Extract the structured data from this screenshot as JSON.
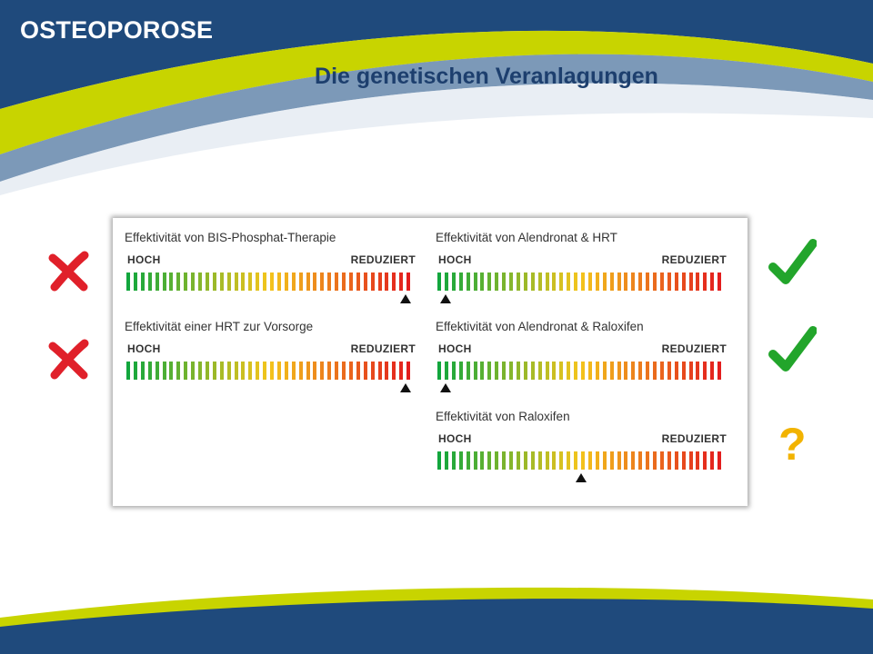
{
  "header": {
    "section_label": "OSTEOPOROSE",
    "title": "Die genetischen Veranlagungen"
  },
  "meters": {
    "bis_phosphat": {
      "title": "Effektivität von BIS-Phosphat-Therapie",
      "high_label": "HOCH",
      "low_label": "REDUZIERT",
      "level": 0.97
    },
    "hrt_vorsorge": {
      "title": "Effektivität einer HRT zur Vorsorge",
      "high_label": "HOCH",
      "low_label": "REDUZIERT",
      "level": 0.97
    },
    "alendronat_hrt": {
      "title": "Effektivität von Alendronat & HRT",
      "high_label": "HOCH",
      "low_label": "REDUZIERT",
      "level": 0.03
    },
    "alendronat_raloxifen": {
      "title": "Effektivität von Alendronat & Raloxifen",
      "high_label": "HOCH",
      "low_label": "REDUZIERT",
      "level": 0.03
    },
    "raloxifen": {
      "title": "Effektivität von Raloxifen",
      "high_label": "HOCH",
      "low_label": "REDUZIERT",
      "level": 0.5
    }
  },
  "status_marks": {
    "bis_phosphat": "cross-icon",
    "hrt_vorsorge": "cross-icon",
    "alendronat_hrt": "checkmark-icon",
    "alendronat_raloxifen": "checkmark-icon",
    "raloxifen": "?"
  },
  "colors": {
    "header_blue": "#1f4a7c",
    "accent_lime": "#c8d400",
    "title_blue": "#1d3f6e",
    "cross_red": "#e0202a",
    "check_green": "#22a52b",
    "question_yellow": "#f2b300",
    "gauge_start": "#12a63d",
    "gauge_mid": "#f3c51c",
    "gauge_end": "#e31e1e"
  }
}
